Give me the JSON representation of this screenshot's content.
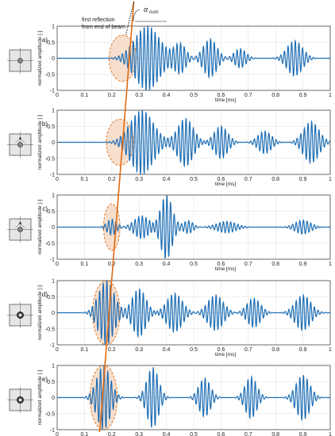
{
  "figure": {
    "annotation_line1": "first reflection",
    "annotation_line2": "from end of beam",
    "angle_symbol": "α",
    "angle_subscript": "num"
  },
  "colors": {
    "signal": "#1f6fb5",
    "wavefront": "#e06a12",
    "highlight_fill": "#f6d9c6",
    "highlight_stroke": "#e07a2a",
    "grid": "#dcdcdc",
    "axis": "#333333"
  },
  "icons": [
    "plate-sensor-center-icon",
    "plate-sensor-offset-icon",
    "plate-sensor-offset-icon",
    "plate-sensor-ring-icon",
    "plate-sensor-ring-icon"
  ],
  "chart_data": [
    {
      "type": "line",
      "panel": "a)",
      "xlabel": "time [ms]",
      "ylabel": "normalized amplitude [-]",
      "xlim": [
        0,
        1
      ],
      "ylim": [
        -1,
        1
      ],
      "xticks": [
        "0",
        "0.1",
        "0.2",
        "0.3",
        "0.4",
        "0.5",
        "0.6",
        "0.7",
        "0.8",
        "0.9",
        "1"
      ],
      "yticks": [
        "1",
        "0.5",
        "0",
        "-0.5",
        "-1"
      ],
      "grid": true,
      "onset_ms": 0.14,
      "packets": [
        {
          "center_ms": 0.33,
          "width_ms": 0.065,
          "amplitude": 1.0
        },
        {
          "center_ms": 0.45,
          "width_ms": 0.03,
          "amplitude": 0.45
        },
        {
          "center_ms": 0.56,
          "width_ms": 0.035,
          "amplitude": 0.6
        },
        {
          "center_ms": 0.67,
          "width_ms": 0.03,
          "amplitude": 0.3
        },
        {
          "center_ms": 0.87,
          "width_ms": 0.04,
          "amplitude": 0.55
        }
      ],
      "highlight": {
        "t_start_ms": 0.19,
        "t_end_ms": 0.29
      }
    },
    {
      "type": "line",
      "panel": "b)",
      "xlabel": "time [ms]",
      "ylabel": "normalized amplitude [-]",
      "xlim": [
        0,
        1
      ],
      "ylim": [
        -1,
        1
      ],
      "xticks": [
        "0",
        "0.1",
        "0.2",
        "0.3",
        "0.4",
        "0.5",
        "0.6",
        "0.7",
        "0.8",
        "0.9",
        "1"
      ],
      "yticks": [
        "1",
        "0.5",
        "0",
        "-0.5",
        "-1"
      ],
      "grid": true,
      "onset_ms": 0.14,
      "packets": [
        {
          "center_ms": 0.31,
          "width_ms": 0.06,
          "amplitude": 1.0
        },
        {
          "center_ms": 0.47,
          "width_ms": 0.04,
          "amplitude": 0.75
        },
        {
          "center_ms": 0.6,
          "width_ms": 0.035,
          "amplitude": 0.5
        },
        {
          "center_ms": 0.76,
          "width_ms": 0.035,
          "amplitude": 0.35
        },
        {
          "center_ms": 0.93,
          "width_ms": 0.04,
          "amplitude": 0.65
        }
      ],
      "highlight": {
        "t_start_ms": 0.18,
        "t_end_ms": 0.28
      }
    },
    {
      "type": "line",
      "panel": "c)",
      "xlabel": "time [ms]",
      "ylabel": "normalized amplitude [-]",
      "xlim": [
        0,
        1
      ],
      "ylim": [
        -1,
        1
      ],
      "xticks": [
        "0",
        "0.1",
        "0.2",
        "0.3",
        "0.4",
        "0.5",
        "0.6",
        "0.7",
        "0.8",
        "0.9",
        "1"
      ],
      "yticks": [
        "1",
        "0.5",
        "0",
        "-0.5",
        "-1"
      ],
      "grid": true,
      "onset_ms": 0.16,
      "packets": [
        {
          "center_ms": 0.2,
          "width_ms": 0.025,
          "amplitude": 0.25
        },
        {
          "center_ms": 0.31,
          "width_ms": 0.04,
          "amplitude": 0.35
        },
        {
          "center_ms": 0.4,
          "width_ms": 0.03,
          "amplitude": 1.0
        },
        {
          "center_ms": 0.48,
          "width_ms": 0.025,
          "amplitude": 0.2
        },
        {
          "center_ms": 0.62,
          "width_ms": 0.05,
          "amplitude": 0.18
        },
        {
          "center_ms": 0.9,
          "width_ms": 0.04,
          "amplitude": 0.22
        }
      ],
      "highlight": {
        "t_start_ms": 0.17,
        "t_end_ms": 0.23
      }
    },
    {
      "type": "line",
      "panel": "d)",
      "xlabel": "time [ms]",
      "ylabel": "normalized amplitude [-]",
      "xlim": [
        0,
        1
      ],
      "ylim": [
        -1,
        1
      ],
      "xticks": [
        "0",
        "0.1",
        "0.2",
        "0.3",
        "0.4",
        "0.5",
        "0.6",
        "0.7",
        "0.8",
        "0.9",
        "1"
      ],
      "yticks": [
        "1",
        "0.5",
        "0",
        "-0.5",
        "-1"
      ],
      "grid": true,
      "onset_ms": 0.1,
      "packets": [
        {
          "center_ms": 0.18,
          "width_ms": 0.04,
          "amplitude": 1.0
        },
        {
          "center_ms": 0.3,
          "width_ms": 0.035,
          "amplitude": 0.75
        },
        {
          "center_ms": 0.43,
          "width_ms": 0.04,
          "amplitude": 0.6
        },
        {
          "center_ms": 0.58,
          "width_ms": 0.04,
          "amplitude": 0.55
        },
        {
          "center_ms": 0.72,
          "width_ms": 0.035,
          "amplitude": 0.45
        },
        {
          "center_ms": 0.9,
          "width_ms": 0.04,
          "amplitude": 0.55
        }
      ],
      "highlight": {
        "t_start_ms": 0.13,
        "t_end_ms": 0.23
      }
    },
    {
      "type": "line",
      "panel": "e)",
      "xlabel": "time [ms]",
      "ylabel": "normalized amplitude [-]",
      "xlim": [
        0,
        1
      ],
      "ylim": [
        -1,
        1
      ],
      "xticks": [
        "0",
        "0.1",
        "0.2",
        "0.3",
        "0.4",
        "0.5",
        "0.6",
        "0.7",
        "0.8",
        "0.9",
        "1"
      ],
      "yticks": [
        "1",
        "0.5",
        "0",
        "-0.5",
        "-1"
      ],
      "grid": true,
      "onset_ms": 0.1,
      "packets": [
        {
          "center_ms": 0.17,
          "width_ms": 0.035,
          "amplitude": 1.0
        },
        {
          "center_ms": 0.35,
          "width_ms": 0.03,
          "amplitude": 0.95
        },
        {
          "center_ms": 0.54,
          "width_ms": 0.03,
          "amplitude": 0.6
        },
        {
          "center_ms": 0.71,
          "width_ms": 0.03,
          "amplitude": 0.65
        },
        {
          "center_ms": 0.9,
          "width_ms": 0.035,
          "amplitude": 0.7
        }
      ],
      "highlight": {
        "t_start_ms": 0.12,
        "t_end_ms": 0.22
      }
    }
  ]
}
